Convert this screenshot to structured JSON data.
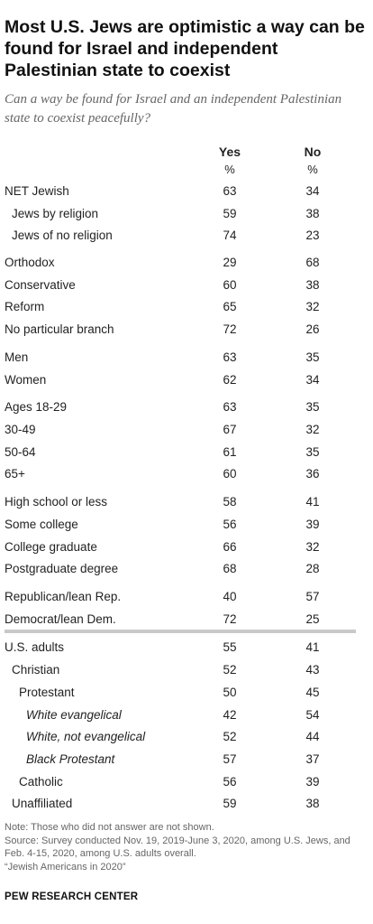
{
  "title": "Most U.S. Jews are optimistic a way can be found for Israel and independent Palestinian state to coexist",
  "subtitle": "Can a way be found for Israel and an independent Palestinian state to coexist peacefully?",
  "columns": [
    {
      "label": "Yes",
      "unit": "%"
    },
    {
      "label": "No",
      "unit": "%"
    }
  ],
  "chart_data": {
    "type": "table",
    "title": "Most U.S. Jews are optimistic a way can be found for Israel and independent Palestinian state to coexist",
    "subtitle": "Can a way be found for Israel and an independent Palestinian state to coexist peacefully?",
    "columns": [
      "Yes",
      "No"
    ],
    "unit": "%",
    "rows": [
      {
        "label": "NET Jewish",
        "yes": "63",
        "no": "34",
        "indent": 0,
        "italic": false
      },
      {
        "label": "Jews by religion",
        "yes": "59",
        "no": "38",
        "indent": 1,
        "italic": false
      },
      {
        "label": "Jews of no religion",
        "yes": "74",
        "no": "23",
        "indent": 1,
        "italic": false
      },
      {
        "label": "Orthodox",
        "yes": "29",
        "no": "68",
        "indent": 0,
        "italic": false
      },
      {
        "label": "Conservative",
        "yes": "60",
        "no": "38",
        "indent": 0,
        "italic": false
      },
      {
        "label": "Reform",
        "yes": "65",
        "no": "32",
        "indent": 0,
        "italic": false
      },
      {
        "label": "No particular branch",
        "yes": "72",
        "no": "26",
        "indent": 0,
        "italic": false
      },
      {
        "label": "Men",
        "yes": "63",
        "no": "35",
        "indent": 0,
        "italic": false
      },
      {
        "label": "Women",
        "yes": "62",
        "no": "34",
        "indent": 0,
        "italic": false
      },
      {
        "label": "Ages 18-29",
        "yes": "63",
        "no": "35",
        "indent": 0,
        "italic": false
      },
      {
        "label": "30-49",
        "yes": "67",
        "no": "32",
        "indent": 0,
        "italic": false
      },
      {
        "label": "50-64",
        "yes": "61",
        "no": "35",
        "indent": 0,
        "italic": false
      },
      {
        "label": "65+",
        "yes": "60",
        "no": "36",
        "indent": 0,
        "italic": false
      },
      {
        "label": "High school or less",
        "yes": "58",
        "no": "41",
        "indent": 0,
        "italic": false
      },
      {
        "label": "Some college",
        "yes": "56",
        "no": "39",
        "indent": 0,
        "italic": false
      },
      {
        "label": "College graduate",
        "yes": "66",
        "no": "32",
        "indent": 0,
        "italic": false
      },
      {
        "label": "Postgraduate degree",
        "yes": "68",
        "no": "28",
        "indent": 0,
        "italic": false
      },
      {
        "label": "Republican/lean Rep.",
        "yes": "40",
        "no": "57",
        "indent": 0,
        "italic": false
      },
      {
        "label": "Democrat/lean Dem.",
        "yes": "72",
        "no": "25",
        "indent": 0,
        "italic": false
      },
      {
        "label": "U.S. adults",
        "yes": "55",
        "no": "41",
        "indent": 0,
        "italic": false
      },
      {
        "label": "Christian",
        "yes": "52",
        "no": "43",
        "indent": 1,
        "italic": false
      },
      {
        "label": "Protestant",
        "yes": "50",
        "no": "45",
        "indent": 2,
        "italic": false
      },
      {
        "label": "White evangelical",
        "yes": "42",
        "no": "54",
        "indent": 3,
        "italic": true
      },
      {
        "label": "White, not evangelical",
        "yes": "52",
        "no": "44",
        "indent": 3,
        "italic": true
      },
      {
        "label": "Black Protestant",
        "yes": "57",
        "no": "37",
        "indent": 3,
        "italic": true
      },
      {
        "label": "Catholic",
        "yes": "56",
        "no": "39",
        "indent": 2,
        "italic": false
      },
      {
        "label": "Unaffiliated",
        "yes": "59",
        "no": "38",
        "indent": 1,
        "italic": false
      }
    ]
  },
  "notes": [
    "Note: Those who did not answer are not shown.",
    "Source: Survey conducted Nov. 19, 2019-June 3, 2020, among U.S. Jews, and Feb. 4-15, 2020, among U.S. adults overall.",
    "“Jewish Americans in 2020”"
  ],
  "source_org": "PEW RESEARCH CENTER"
}
